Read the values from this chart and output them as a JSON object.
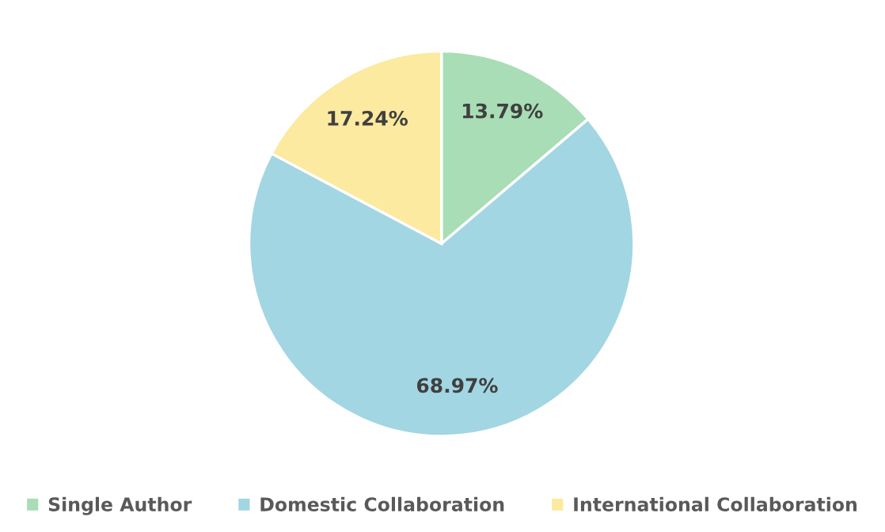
{
  "chart_data": {
    "type": "pie",
    "categories": [
      "Single Author",
      "Domestic Collaboration",
      "International Collaboration"
    ],
    "values": [
      13.79,
      68.97,
      17.24
    ],
    "value_labels": [
      "13.79%",
      "68.97%",
      "17.24%"
    ],
    "colors": [
      "#a8ddb5",
      "#a2d6e2",
      "#fbea9f"
    ],
    "legend": "bottom"
  }
}
